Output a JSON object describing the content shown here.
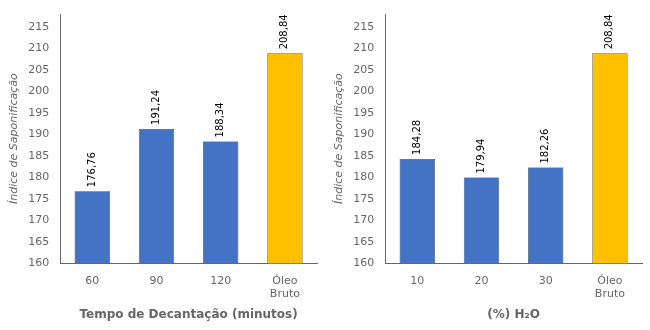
{
  "chart_data": [
    {
      "type": "bar",
      "categories": [
        "60",
        "90",
        "120",
        "Óleo\nBruto"
      ],
      "values": [
        176.76,
        191.24,
        188.34,
        208.84
      ],
      "value_labels": [
        "176,76",
        "191,24",
        "188,34",
        "208,84"
      ],
      "colors": [
        "#4472c4",
        "#4472c4",
        "#4472c4",
        "#ffc000"
      ],
      "xlabel": "Tempo de Decantação (minutos)",
      "ylabel": "Índice de Saponificação",
      "ylim": [
        160,
        218
      ],
      "yticks": [
        160,
        165,
        170,
        175,
        180,
        185,
        190,
        195,
        200,
        205,
        210,
        215
      ],
      "data_labels": true,
      "grid": false
    },
    {
      "type": "bar",
      "categories": [
        "10",
        "20",
        "30",
        "Óleo\nBruto"
      ],
      "values": [
        184.28,
        179.94,
        182.26,
        208.84
      ],
      "value_labels": [
        "184,28",
        "179,94",
        "182,26",
        "208,84"
      ],
      "colors": [
        "#4472c4",
        "#4472c4",
        "#4472c4",
        "#ffc000"
      ],
      "xlabel": "(%) H₂O",
      "ylabel": "Índice de Saponificação",
      "ylim": [
        160,
        218
      ],
      "yticks": [
        160,
        165,
        170,
        175,
        180,
        185,
        190,
        195,
        200,
        205,
        210,
        215
      ],
      "data_labels": true,
      "grid": false
    }
  ]
}
